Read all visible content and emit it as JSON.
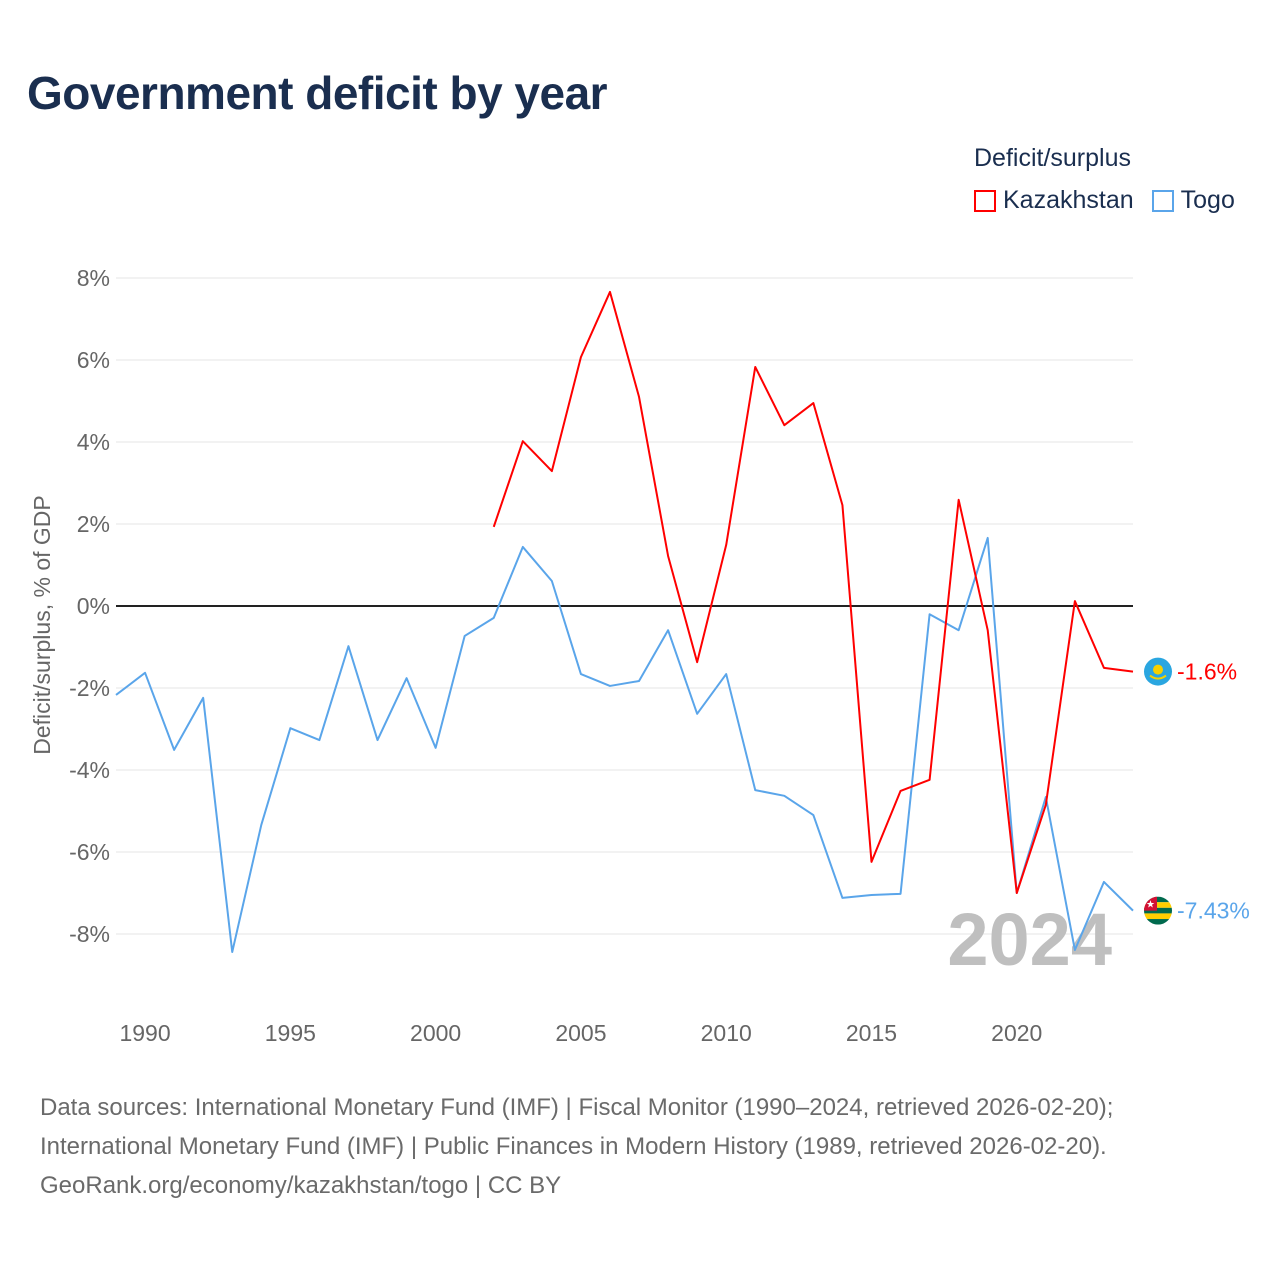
{
  "title": "Government deficit by year",
  "legend": {
    "title": "Deficit/surplus",
    "items": [
      {
        "label": "Kazakhstan",
        "color": "#ff0000"
      },
      {
        "label": "Togo",
        "color": "#5aa5ea"
      }
    ]
  },
  "sources": {
    "line1": "Data sources: International Monetary Fund (IMF) | Fiscal Monitor (1990–2024, retrieved 2026-02-20);",
    "line2": "International Monetary Fund (IMF) | Public Finances in Modern History (1989, retrieved 2026-02-20).",
    "line3": "GeoRank.org/economy/kazakhstan/togo | CC BY"
  },
  "chart_data": {
    "type": "line",
    "title": "Government deficit by year",
    "ylabel": "Deficit/surplus, % of GDP",
    "xlabel": "",
    "xlim": [
      1989,
      2024
    ],
    "ylim": [
      -9,
      8.5
    ],
    "x_ticks": [
      1990,
      1995,
      2000,
      2005,
      2010,
      2015,
      2020
    ],
    "y_ticks": [
      8,
      6,
      4,
      2,
      0,
      -2,
      -4,
      -6,
      -8
    ],
    "y_tick_labels": [
      "8%",
      "6%",
      "4%",
      "2%",
      "0%",
      "-2%",
      "-4%",
      "-6%",
      "-8%"
    ],
    "grid": true,
    "year_watermark": "2024",
    "series": [
      {
        "name": "Kazakhstan",
        "color": "#ff0000",
        "end_label": "-1.6%",
        "start_year": 2002,
        "values": [
          1.93,
          4.02,
          3.29,
          6.07,
          7.66,
          5.1,
          1.22,
          -1.37,
          1.49,
          5.83,
          4.41,
          4.95,
          2.46,
          -6.24,
          -4.51,
          -4.24,
          2.59,
          -0.59,
          -7.0,
          -4.85,
          0.12,
          -1.51,
          -1.6
        ]
      },
      {
        "name": "Togo",
        "color": "#5aa5ea",
        "end_label": "-7.43%",
        "start_year": 1989,
        "values": [
          -2.17,
          -1.63,
          -3.51,
          -2.24,
          -8.44,
          -5.34,
          -2.98,
          -3.27,
          -0.98,
          -3.27,
          -1.76,
          -3.46,
          -0.73,
          -0.29,
          1.44,
          0.61,
          -1.66,
          -1.95,
          -1.83,
          -0.59,
          -2.63,
          -1.66,
          -4.49,
          -4.63,
          -5.1,
          -7.12,
          -7.05,
          -7.02,
          -0.2,
          -0.59,
          1.66,
          -7.0,
          -4.66,
          -8.39,
          -6.73,
          -7.43
        ]
      }
    ]
  }
}
